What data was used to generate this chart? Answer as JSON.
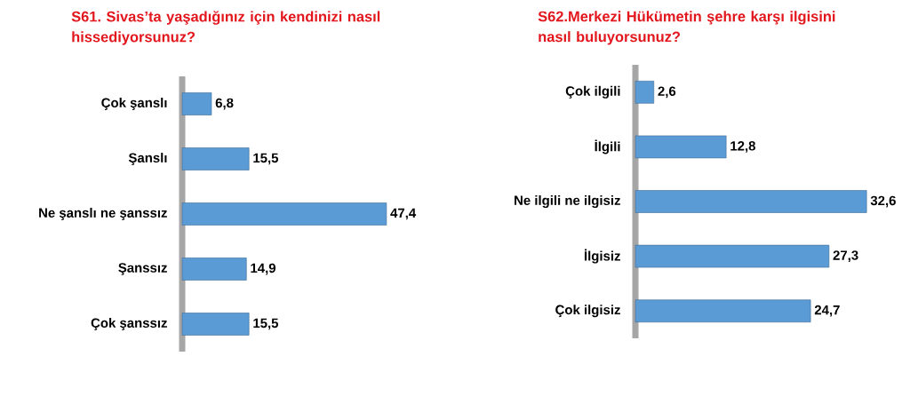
{
  "chart_data": [
    {
      "type": "bar",
      "orientation": "horizontal",
      "title": "S61. Sivas’ta yaşadığınız için kendinizi nasıl hissediyorsunuz?",
      "categories": [
        "Çok şanslı",
        "Şanslı",
        "Ne şanslı ne şanssız",
        "Şanssız",
        "Çok şanssız"
      ],
      "values": [
        6.8,
        15.5,
        47.4,
        14.9,
        15.5
      ],
      "value_labels": [
        "6,8",
        "15,5",
        "47,4",
        "14,9",
        "15,5"
      ],
      "color": "#5b9bd5",
      "tick_labels": "y"
    },
    {
      "type": "bar",
      "orientation": "horizontal",
      "title": "S62.Merkezi Hükümetin şehre karşı ilgisini nasıl buluyorsunuz?",
      "categories": [
        "Çok ilgili",
        "İlgili",
        "Ne ilgili  ne ilgisiz",
        "İlgisiz",
        "Çok ilgisiz"
      ],
      "values": [
        2.6,
        12.8,
        32.6,
        27.3,
        24.7
      ],
      "value_labels": [
        "2,6",
        "12,8",
        "32,6",
        "27,3",
        "24,7"
      ],
      "color": "#5b9bd5",
      "tick_labels": "y"
    }
  ]
}
